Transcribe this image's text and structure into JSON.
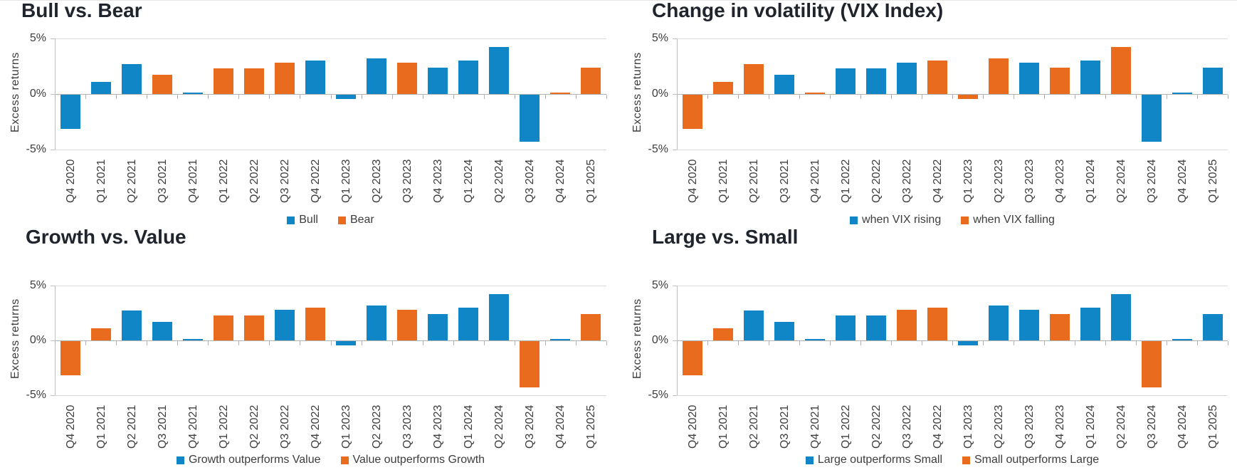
{
  "page": {
    "background": "#ffffff"
  },
  "colors": {
    "blue": "#1186c6",
    "orange": "#e96b1e",
    "title": "#20242c",
    "axis_text": "#3d3d3d",
    "gridline": "#d9d9d9",
    "zero_line": "#b3b3b3",
    "axis_line": "#c0c0c0"
  },
  "y_axis": {
    "label": "Excess returns",
    "ticks": [
      {
        "label": "5%",
        "value": 5
      },
      {
        "label": "0%",
        "value": 0
      },
      {
        "label": "-5%",
        "value": -5
      }
    ]
  },
  "chart_data": [
    {
      "type": "bar",
      "title": "Bull vs. Bear",
      "ylabel": "Excess returns",
      "ylim": [
        -5,
        5
      ],
      "grid": "horizontal",
      "legend_position": "bottom",
      "categories": [
        "Q4 2020",
        "Q1 2021",
        "Q2 2021",
        "Q3 2021",
        "Q4 2021",
        "Q1 2022",
        "Q2 2022",
        "Q3 2022",
        "Q4 2022",
        "Q1 2023",
        "Q2 2023",
        "Q3 2023",
        "Q4 2023",
        "Q1 2024",
        "Q2 2024",
        "Q3 2024",
        "Q4 2024",
        "Q1 2025"
      ],
      "series": [
        {
          "name": "Bull",
          "color_key": "blue",
          "values": [
            -3.1,
            1.1,
            2.7,
            null,
            0.15,
            null,
            null,
            null,
            3.0,
            -0.4,
            3.2,
            null,
            2.4,
            3.0,
            4.2,
            -4.2,
            null,
            null
          ]
        },
        {
          "name": "Bear",
          "color_key": "orange",
          "values": [
            null,
            null,
            null,
            1.7,
            null,
            2.3,
            2.3,
            2.8,
            null,
            null,
            null,
            2.8,
            null,
            null,
            null,
            null,
            0.15,
            2.4
          ]
        }
      ]
    },
    {
      "type": "bar",
      "title": "Change in volatility (VIX Index)",
      "ylabel": "Excess returns",
      "ylim": [
        -5,
        5
      ],
      "grid": "horizontal",
      "legend_position": "bottom",
      "categories": [
        "Q4 2020",
        "Q1 2021",
        "Q2 2021",
        "Q3 2021",
        "Q4 2021",
        "Q1 2022",
        "Q2 2022",
        "Q3 2022",
        "Q4 2022",
        "Q1 2023",
        "Q2 2023",
        "Q3 2023",
        "Q4 2023",
        "Q1 2024",
        "Q2 2024",
        "Q3 2024",
        "Q4 2024",
        "Q1 2025"
      ],
      "series": [
        {
          "name": "when VIX rising",
          "color_key": "blue",
          "values": [
            null,
            null,
            null,
            1.7,
            null,
            2.3,
            2.3,
            2.8,
            null,
            null,
            null,
            2.8,
            null,
            3.0,
            null,
            -4.2,
            0.15,
            2.4
          ]
        },
        {
          "name": "when VIX falling",
          "color_key": "orange",
          "values": [
            -3.1,
            1.1,
            2.7,
            null,
            0.15,
            null,
            null,
            null,
            3.0,
            -0.4,
            3.2,
            null,
            2.4,
            null,
            4.2,
            null,
            null,
            null
          ]
        }
      ]
    },
    {
      "type": "bar",
      "title": "Growth vs. Value",
      "ylabel": "Excess returns",
      "ylim": [
        -5,
        5
      ],
      "grid": "horizontal",
      "legend_position": "bottom",
      "categories": [
        "Q4 2020",
        "Q1 2021",
        "Q2 2021",
        "Q3 2021",
        "Q4 2021",
        "Q1 2022",
        "Q2 2022",
        "Q3 2022",
        "Q4 2022",
        "Q1 2023",
        "Q2 2023",
        "Q3 2023",
        "Q4 2023",
        "Q1 2024",
        "Q2 2024",
        "Q3 2024",
        "Q4 2024",
        "Q1 2025"
      ],
      "series": [
        {
          "name": "Growth outperforms Value",
          "color_key": "blue",
          "values": [
            null,
            null,
            2.7,
            1.7,
            0.15,
            null,
            null,
            2.8,
            null,
            -0.4,
            3.2,
            null,
            2.4,
            3.0,
            4.2,
            null,
            0.15,
            null
          ]
        },
        {
          "name": "Value outperforms Growth",
          "color_key": "orange",
          "values": [
            -3.1,
            1.1,
            null,
            null,
            null,
            2.3,
            2.3,
            null,
            3.0,
            null,
            null,
            2.8,
            null,
            null,
            null,
            -4.2,
            null,
            2.4
          ]
        }
      ]
    },
    {
      "type": "bar",
      "title": "Large vs. Small",
      "ylabel": "Excess returns",
      "ylim": [
        -5,
        5
      ],
      "grid": "horizontal",
      "legend_position": "bottom",
      "categories": [
        "Q4 2020",
        "Q1 2021",
        "Q2 2021",
        "Q3 2021",
        "Q4 2021",
        "Q1 2022",
        "Q2 2022",
        "Q3 2022",
        "Q4 2022",
        "Q1 2023",
        "Q2 2023",
        "Q3 2023",
        "Q4 2023",
        "Q1 2024",
        "Q2 2024",
        "Q3 2024",
        "Q4 2024",
        "Q1 2025"
      ],
      "series": [
        {
          "name": "Large outperforms Small",
          "color_key": "blue",
          "values": [
            null,
            null,
            2.7,
            1.7,
            0.15,
            2.3,
            2.3,
            null,
            null,
            -0.4,
            3.2,
            2.8,
            null,
            3.0,
            4.2,
            null,
            0.15,
            2.4
          ]
        },
        {
          "name": "Small outperforms Large",
          "color_key": "orange",
          "values": [
            -3.1,
            1.1,
            null,
            null,
            null,
            null,
            null,
            2.8,
            3.0,
            null,
            null,
            null,
            2.4,
            null,
            null,
            -4.2,
            null,
            null
          ]
        }
      ]
    }
  ]
}
